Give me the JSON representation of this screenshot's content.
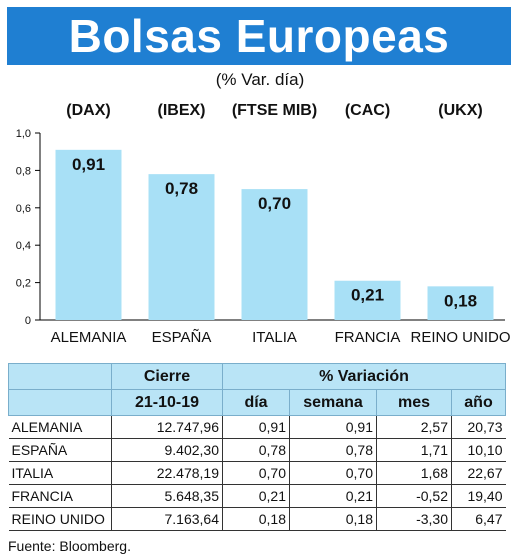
{
  "header": {
    "title": "Bolsas Europeas",
    "subtitle": "(% Var. día)"
  },
  "chart_data": {
    "type": "bar",
    "categories": [
      "ALEMANIA",
      "ESPAÑA",
      "ITALIA",
      "FRANCIA",
      "REINO UNIDO"
    ],
    "indices": [
      "(DAX)",
      "(IBEX)",
      "(FTSE MIB)",
      "(CAC)",
      "(UKX)"
    ],
    "values": [
      0.91,
      0.78,
      0.7,
      0.21,
      0.18
    ],
    "value_labels": [
      "0,91",
      "0,78",
      "0,70",
      "0,21",
      "0,18"
    ],
    "ylim": [
      0,
      1.0
    ],
    "yticks": [
      0,
      0.2,
      0.4,
      0.6,
      0.8,
      1.0
    ],
    "ytick_labels": [
      "0",
      "0,2",
      "0,4",
      "0,6",
      "0,8",
      "1,0"
    ],
    "bar_color": "#a8e0f6",
    "grid": false
  },
  "table": {
    "header_top": {
      "close": "Cierre",
      "variation": "% Variación"
    },
    "header_sub": {
      "date": "21-10-19",
      "day": "día",
      "week": "semana",
      "month": "mes",
      "year": "año"
    },
    "rows": [
      {
        "country": "ALEMANIA",
        "close": "12.747,96",
        "day": "0,91",
        "week": "0,91",
        "month": "2,57",
        "year": "20,73"
      },
      {
        "country": "ESPAÑA",
        "close": "9.402,30",
        "day": "0,78",
        "week": "0,78",
        "month": "1,71",
        "year": "10,10"
      },
      {
        "country": "ITALIA",
        "close": "22.478,19",
        "day": "0,70",
        "week": "0,70",
        "month": "1,68",
        "year": "22,67"
      },
      {
        "country": "FRANCIA",
        "close": "5.648,35",
        "day": "0,21",
        "week": "0,21",
        "month": "-0,52",
        "year": "19,40"
      },
      {
        "country": "REINO UNIDO",
        "close": "7.163,64",
        "day": "0,18",
        "week": "0,18",
        "month": "-3,30",
        "year": "6,47"
      }
    ]
  },
  "footer": {
    "source": "Fuente: Bloomberg."
  },
  "colors": {
    "banner": "#1f7fd2",
    "table_header": "#b9e4f6"
  }
}
